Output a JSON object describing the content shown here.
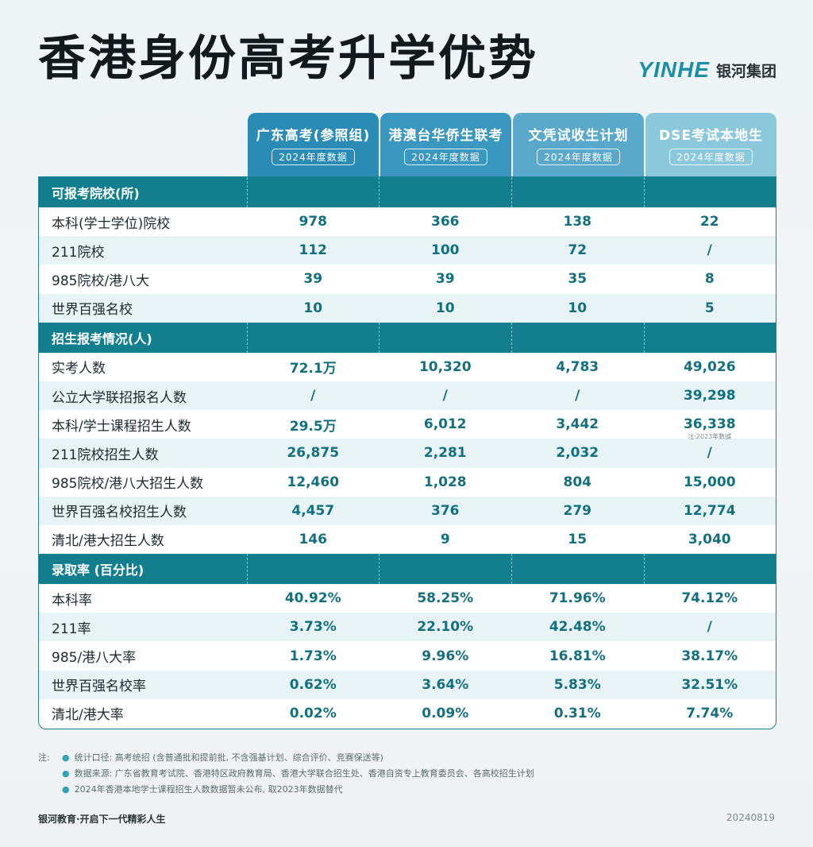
{
  "title": "香港身份高考升学优势",
  "brand": {
    "logo": "YINHE",
    "name": "银河集团",
    "logo_color": "#1a8fa5"
  },
  "columns": [
    {
      "title": "广东高考(参照组)",
      "sub": "2024年度数据"
    },
    {
      "title": "港澳台华侨生联考",
      "sub": "2024年度数据"
    },
    {
      "title": "文凭试收生计划",
      "sub": "2024年度数据"
    },
    {
      "title": "DSE考试本地生",
      "sub": "2024年度数据"
    }
  ],
  "sections": [
    {
      "label": "可报考院校(所)",
      "rows": [
        {
          "label": "本科(学士学位)院校",
          "values": [
            "978",
            "366",
            "138",
            "22"
          ]
        },
        {
          "label": "211院校",
          "values": [
            "112",
            "100",
            "72",
            "/"
          ]
        },
        {
          "label": "985院校/港八大",
          "values": [
            "39",
            "39",
            "35",
            "8"
          ]
        },
        {
          "label": "世界百强名校",
          "values": [
            "10",
            "10",
            "10",
            "5"
          ]
        }
      ]
    },
    {
      "label": "招生报考情况(人)",
      "rows": [
        {
          "label": "实考人数",
          "values": [
            "72.1万",
            "10,320",
            "4,783",
            "49,026"
          ]
        },
        {
          "label": "公立大学联招报名人数",
          "values": [
            "/",
            "/",
            "/",
            "39,298"
          ]
        },
        {
          "label": "本科/学士课程招生人数",
          "values": [
            "29.5万",
            "6,012",
            "3,442",
            "36,338"
          ],
          "note": "注:2023年數據"
        },
        {
          "label": "211院校招生人数",
          "values": [
            "26,875",
            "2,281",
            "2,032",
            "/"
          ]
        },
        {
          "label": "985院校/港八大招生人数",
          "values": [
            "12,460",
            "1,028",
            "804",
            "15,000"
          ]
        },
        {
          "label": "世界百强名校招生人数",
          "values": [
            "4,457",
            "376",
            "279",
            "12,774"
          ]
        },
        {
          "label": "清北/港大招生人数",
          "values": [
            "146",
            "9",
            "15",
            "3,040"
          ]
        }
      ]
    },
    {
      "label": "录取率 (百分比)",
      "rows": [
        {
          "label": "本科率",
          "values": [
            "40.92%",
            "58.25%",
            "71.96%",
            "74.12%"
          ]
        },
        {
          "label": "211率",
          "values": [
            "3.73%",
            "22.10%",
            "42.48%",
            "/"
          ]
        },
        {
          "label": "985/港八大率",
          "values": [
            "1.73%",
            "9.96%",
            "16.81%",
            "38.17%"
          ]
        },
        {
          "label": "世界百强名校率",
          "values": [
            "0.62%",
            "3.64%",
            "5.83%",
            "32.51%"
          ]
        },
        {
          "label": "清北/港大率",
          "values": [
            "0.02%",
            "0.09%",
            "0.31%",
            "7.74%"
          ]
        }
      ]
    }
  ],
  "notes": {
    "prefix": "注:",
    "items": [
      "统计口径: 高考统招 (含普通批和提前批, 不含强基计划、综合评价、竞赛保送等)",
      "数据来源: 广东省教育考试院、香港特区政府教育局、香港大学联合招生处、香港自资专上教育委员会、各高校招生计划",
      "2024年香港本地学士课程招生人数数据暂未公布, 取2023年数据替代"
    ]
  },
  "footer": {
    "slogan": "银河教育·开启下一代精彩人生",
    "date": "20240819"
  }
}
